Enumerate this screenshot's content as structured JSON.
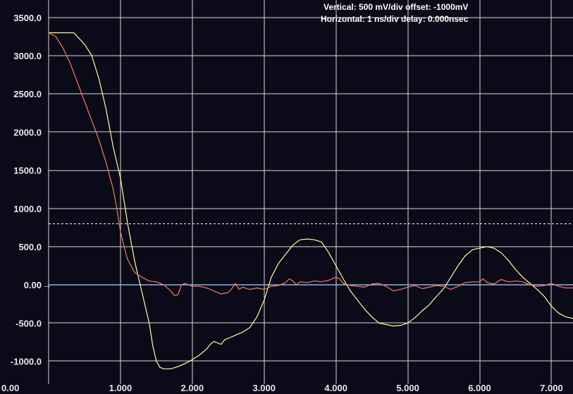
{
  "header": {
    "vertical": "Vertical: 500 mV/div  offset: -1000mV",
    "horizontal": "Horizontal: 1 ns/div  delay: 0.000nsec"
  },
  "colors": {
    "background": "#0b0a18",
    "grid": "#d8d8d8",
    "ch1": "#ffff99",
    "ch2": "#ff7a55",
    "zero_line": "#5aa0ff",
    "threshold": "#ffffff"
  },
  "chart_data": {
    "type": "line",
    "xlim": [
      0,
      7.3
    ],
    "ylim": [
      -1300,
      3600
    ],
    "x_ticks": [
      "0.00",
      "1.000",
      "2.000",
      "3.000",
      "4.000",
      "5.000",
      "6.000",
      "7.000"
    ],
    "y_ticks": [
      "3500.0",
      "3000.0",
      "2500.0",
      "2000.0",
      "1500.0",
      "1000.0",
      "500.0",
      "0.00",
      "-500.0",
      "-1000.0"
    ],
    "threshold": 800,
    "zero_marker": "→",
    "series": [
      {
        "points": [
          [
            0,
            3300
          ],
          [
            0.2,
            3300
          ],
          [
            0.35,
            3300
          ],
          [
            0.5,
            3150
          ],
          [
            0.6,
            3000
          ],
          [
            0.7,
            2700
          ],
          [
            0.8,
            2300
          ],
          [
            0.9,
            1800
          ],
          [
            1.0,
            1400
          ],
          [
            1.05,
            1100
          ],
          [
            1.1,
            800
          ],
          [
            1.2,
            300
          ],
          [
            1.3,
            -100
          ],
          [
            1.4,
            -500
          ],
          [
            1.45,
            -800
          ],
          [
            1.5,
            -1000
          ],
          [
            1.55,
            -1080
          ],
          [
            1.6,
            -1100
          ],
          [
            1.7,
            -1100
          ],
          [
            1.8,
            -1070
          ],
          [
            1.9,
            -1030
          ],
          [
            2.0,
            -980
          ],
          [
            2.1,
            -920
          ],
          [
            2.2,
            -840
          ],
          [
            2.25,
            -780
          ],
          [
            2.3,
            -740
          ],
          [
            2.35,
            -760
          ],
          [
            2.4,
            -780
          ],
          [
            2.45,
            -720
          ],
          [
            2.5,
            -700
          ],
          [
            2.6,
            -660
          ],
          [
            2.7,
            -620
          ],
          [
            2.8,
            -560
          ],
          [
            2.9,
            -420
          ],
          [
            3.0,
            -200
          ],
          [
            3.1,
            100
          ],
          [
            3.2,
            280
          ],
          [
            3.3,
            400
          ],
          [
            3.4,
            520
          ],
          [
            3.5,
            590
          ],
          [
            3.6,
            600
          ],
          [
            3.7,
            590
          ],
          [
            3.8,
            560
          ],
          [
            3.9,
            420
          ],
          [
            4.0,
            250
          ],
          [
            4.1,
            80
          ],
          [
            4.2,
            -80
          ],
          [
            4.3,
            -200
          ],
          [
            4.4,
            -320
          ],
          [
            4.5,
            -420
          ],
          [
            4.6,
            -500
          ],
          [
            4.7,
            -520
          ],
          [
            4.8,
            -540
          ],
          [
            4.9,
            -530
          ],
          [
            5.0,
            -500
          ],
          [
            5.1,
            -430
          ],
          [
            5.2,
            -340
          ],
          [
            5.3,
            -260
          ],
          [
            5.4,
            -150
          ],
          [
            5.5,
            -50
          ],
          [
            5.6,
            100
          ],
          [
            5.7,
            250
          ],
          [
            5.8,
            380
          ],
          [
            5.9,
            460
          ],
          [
            6.0,
            480
          ],
          [
            6.1,
            500
          ],
          [
            6.2,
            480
          ],
          [
            6.3,
            420
          ],
          [
            6.4,
            320
          ],
          [
            6.5,
            200
          ],
          [
            6.6,
            100
          ],
          [
            6.7,
            20
          ],
          [
            6.8,
            -60
          ],
          [
            6.9,
            -150
          ],
          [
            7.0,
            -280
          ],
          [
            7.1,
            -370
          ],
          [
            7.2,
            -420
          ],
          [
            7.3,
            -440
          ]
        ]
      },
      {
        "points": [
          [
            0,
            3300
          ],
          [
            0.1,
            3250
          ],
          [
            0.2,
            3100
          ],
          [
            0.3,
            2900
          ],
          [
            0.4,
            2650
          ],
          [
            0.5,
            2400
          ],
          [
            0.6,
            2150
          ],
          [
            0.7,
            1900
          ],
          [
            0.8,
            1600
          ],
          [
            0.9,
            1250
          ],
          [
            0.95,
            1000
          ],
          [
            1.0,
            700
          ],
          [
            1.05,
            500
          ],
          [
            1.1,
            330
          ],
          [
            1.2,
            160
          ],
          [
            1.3,
            100
          ],
          [
            1.4,
            50
          ],
          [
            1.5,
            40
          ],
          [
            1.6,
            0
          ],
          [
            1.7,
            -80
          ],
          [
            1.75,
            -140
          ],
          [
            1.8,
            -130
          ],
          [
            1.85,
            0
          ],
          [
            1.9,
            20
          ],
          [
            2.0,
            -20
          ],
          [
            2.1,
            -20
          ],
          [
            2.2,
            -40
          ],
          [
            2.3,
            -80
          ],
          [
            2.4,
            -120
          ],
          [
            2.5,
            -100
          ],
          [
            2.55,
            -50
          ],
          [
            2.6,
            20
          ],
          [
            2.65,
            -60
          ],
          [
            2.7,
            -30
          ],
          [
            2.8,
            -60
          ],
          [
            2.9,
            -40
          ],
          [
            3.0,
            -60
          ],
          [
            3.1,
            -20
          ],
          [
            3.2,
            -10
          ],
          [
            3.3,
            30
          ],
          [
            3.35,
            80
          ],
          [
            3.4,
            50
          ],
          [
            3.45,
            0
          ],
          [
            3.5,
            40
          ],
          [
            3.6,
            30
          ],
          [
            3.7,
            50
          ],
          [
            3.8,
            40
          ],
          [
            3.9,
            60
          ],
          [
            4.0,
            100
          ],
          [
            4.05,
            80
          ],
          [
            4.1,
            20
          ],
          [
            4.2,
            -10
          ],
          [
            4.3,
            -20
          ],
          [
            4.4,
            -30
          ],
          [
            4.5,
            10
          ],
          [
            4.6,
            20
          ],
          [
            4.7,
            -20
          ],
          [
            4.8,
            -80
          ],
          [
            4.9,
            -60
          ],
          [
            5.0,
            -30
          ],
          [
            5.1,
            -10
          ],
          [
            5.2,
            -50
          ],
          [
            5.3,
            -30
          ],
          [
            5.4,
            -10
          ],
          [
            5.5,
            -20
          ],
          [
            5.6,
            -60
          ],
          [
            5.7,
            -20
          ],
          [
            5.8,
            30
          ],
          [
            5.9,
            40
          ],
          [
            6.0,
            40
          ],
          [
            6.05,
            80
          ],
          [
            6.1,
            30
          ],
          [
            6.2,
            10
          ],
          [
            6.3,
            70
          ],
          [
            6.4,
            40
          ],
          [
            6.5,
            50
          ],
          [
            6.6,
            40
          ],
          [
            6.7,
            0
          ],
          [
            6.8,
            -20
          ],
          [
            6.9,
            -10
          ],
          [
            7.0,
            20
          ],
          [
            7.1,
            -20
          ],
          [
            7.2,
            -40
          ],
          [
            7.3,
            -40
          ]
        ]
      }
    ]
  }
}
